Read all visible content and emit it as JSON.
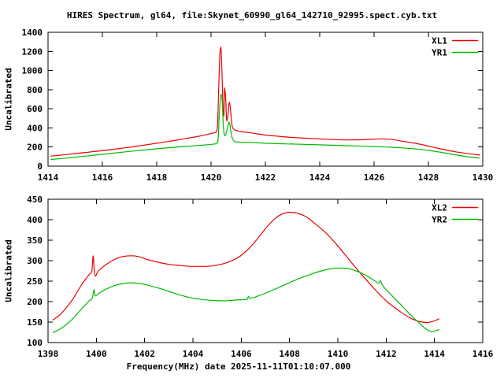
{
  "header": {
    "title": "HIRES Spectrum, gl64, file:Skynet_60990_gl64_142710_92995.spect.cyb.txt"
  },
  "colors": {
    "xl_red": "#ee0000",
    "yr_green": "#00bb00",
    "axis": "#000000",
    "background": "#ffffff"
  },
  "chart_data": [
    {
      "type": "line",
      "panel": "top",
      "ylabel": "Uncalibrated",
      "xlim": [
        1414,
        1430
      ],
      "ylim": [
        0,
        1400
      ],
      "xticks": [
        1414,
        1416,
        1418,
        1420,
        1422,
        1424,
        1426,
        1428,
        1430
      ],
      "yticks": [
        0,
        200,
        400,
        600,
        800,
        1000,
        1200,
        1400
      ],
      "grid": false,
      "legend_position": "top-right",
      "series": [
        {
          "name": "XL1",
          "color": "#ee0000",
          "points": [
            [
              1414.1,
              105
            ],
            [
              1414.5,
              116
            ],
            [
              1415.0,
              132
            ],
            [
              1415.5,
              147
            ],
            [
              1416.0,
              162
            ],
            [
              1416.5,
              180
            ],
            [
              1417.0,
              198
            ],
            [
              1417.5,
              218
            ],
            [
              1418.0,
              240
            ],
            [
              1418.5,
              262
            ],
            [
              1419.0,
              286
            ],
            [
              1419.4,
              305
            ],
            [
              1419.8,
              328
            ],
            [
              1420.05,
              345
            ],
            [
              1420.18,
              356
            ],
            [
              1420.24,
              430
            ],
            [
              1420.28,
              800
            ],
            [
              1420.32,
              1140
            ],
            [
              1420.36,
              1248
            ],
            [
              1420.4,
              1000
            ],
            [
              1420.44,
              620
            ],
            [
              1420.47,
              520
            ],
            [
              1420.5,
              820
            ],
            [
              1420.54,
              700
            ],
            [
              1420.58,
              470
            ],
            [
              1420.62,
              530
            ],
            [
              1420.67,
              668
            ],
            [
              1420.72,
              580
            ],
            [
              1420.77,
              430
            ],
            [
              1420.85,
              385
            ],
            [
              1421.0,
              368
            ],
            [
              1421.4,
              352
            ],
            [
              1422.0,
              325
            ],
            [
              1422.5,
              312
            ],
            [
              1423.0,
              300
            ],
            [
              1423.5,
              292
            ],
            [
              1424.0,
              285
            ],
            [
              1424.5,
              278
            ],
            [
              1425.0,
              274
            ],
            [
              1425.5,
              276
            ],
            [
              1426.0,
              282
            ],
            [
              1426.3,
              286
            ],
            [
              1426.7,
              278
            ],
            [
              1427.0,
              263
            ],
            [
              1427.5,
              240
            ],
            [
              1428.0,
              210
            ],
            [
              1428.5,
              178
            ],
            [
              1429.0,
              150
            ],
            [
              1429.4,
              133
            ],
            [
              1429.9,
              116
            ]
          ]
        },
        {
          "name": "YR1",
          "color": "#00bb00",
          "points": [
            [
              1414.1,
              70
            ],
            [
              1414.5,
              80
            ],
            [
              1415.0,
              94
            ],
            [
              1415.5,
              109
            ],
            [
              1416.0,
              124
            ],
            [
              1416.5,
              139
            ],
            [
              1417.0,
              154
            ],
            [
              1417.5,
              168
            ],
            [
              1418.0,
              182
            ],
            [
              1418.5,
              194
            ],
            [
              1419.0,
              205
            ],
            [
              1419.5,
              216
            ],
            [
              1420.0,
              228
            ],
            [
              1420.2,
              238
            ],
            [
              1420.26,
              280
            ],
            [
              1420.3,
              520
            ],
            [
              1420.34,
              700
            ],
            [
              1420.37,
              752
            ],
            [
              1420.41,
              690
            ],
            [
              1420.45,
              430
            ],
            [
              1420.5,
              318
            ],
            [
              1420.56,
              350
            ],
            [
              1420.62,
              420
            ],
            [
              1420.66,
              462
            ],
            [
              1420.7,
              425
            ],
            [
              1420.76,
              315
            ],
            [
              1420.85,
              262
            ],
            [
              1421.0,
              252
            ],
            [
              1421.5,
              248
            ],
            [
              1422.0,
              240
            ],
            [
              1423.0,
              231
            ],
            [
              1424.0,
              223
            ],
            [
              1425.0,
              214
            ],
            [
              1426.0,
              205
            ],
            [
              1426.5,
              200
            ],
            [
              1427.0,
              192
            ],
            [
              1427.5,
              181
            ],
            [
              1428.0,
              165
            ],
            [
              1428.5,
              143
            ],
            [
              1429.0,
              119
            ],
            [
              1429.4,
              100
            ],
            [
              1429.9,
              84
            ]
          ]
        }
      ]
    },
    {
      "type": "line",
      "panel": "bottom",
      "ylabel": "Uncalibrated",
      "xlabel": "Frequency(MHz) date 2025-11-11T01:10:07.000",
      "xlim": [
        1398,
        1416
      ],
      "ylim": [
        100,
        450
      ],
      "xticks": [
        1398,
        1400,
        1402,
        1404,
        1406,
        1408,
        1410,
        1412,
        1414,
        1416
      ],
      "yticks": [
        100,
        150,
        200,
        250,
        300,
        350,
        400,
        450
      ],
      "grid": false,
      "legend_position": "top-right",
      "series": [
        {
          "name": "XL2",
          "color": "#ee0000",
          "points": [
            [
              1398.2,
              155
            ],
            [
              1398.5,
              168
            ],
            [
              1399.0,
              204
            ],
            [
              1399.4,
              242
            ],
            [
              1399.7,
              266
            ],
            [
              1399.82,
              276
            ],
            [
              1399.87,
              312
            ],
            [
              1399.91,
              278
            ],
            [
              1399.96,
              262
            ],
            [
              1400.05,
              272
            ],
            [
              1400.3,
              286
            ],
            [
              1400.6,
              298
            ],
            [
              1400.9,
              307
            ],
            [
              1401.2,
              311
            ],
            [
              1401.5,
              312
            ],
            [
              1401.8,
              309
            ],
            [
              1402.1,
              303
            ],
            [
              1402.5,
              297
            ],
            [
              1403.0,
              291
            ],
            [
              1403.5,
              288
            ],
            [
              1404.0,
              286
            ],
            [
              1404.5,
              286
            ],
            [
              1405.0,
              289
            ],
            [
              1405.4,
              295
            ],
            [
              1405.8,
              305
            ],
            [
              1406.2,
              323
            ],
            [
              1406.6,
              348
            ],
            [
              1407.0,
              378
            ],
            [
              1407.4,
              403
            ],
            [
              1407.7,
              414
            ],
            [
              1408.0,
              418
            ],
            [
              1408.3,
              416
            ],
            [
              1408.7,
              407
            ],
            [
              1409.0,
              393
            ],
            [
              1409.5,
              368
            ],
            [
              1410.0,
              336
            ],
            [
              1410.5,
              300
            ],
            [
              1411.0,
              265
            ],
            [
              1411.5,
              232
            ],
            [
              1412.0,
              202
            ],
            [
              1412.5,
              179
            ],
            [
              1413.0,
              160
            ],
            [
              1413.4,
              151
            ],
            [
              1413.7,
              149
            ],
            [
              1414.0,
              153
            ],
            [
              1414.2,
              158
            ]
          ]
        },
        {
          "name": "YR2",
          "color": "#00bb00",
          "points": [
            [
              1398.2,
              124
            ],
            [
              1398.6,
              137
            ],
            [
              1399.0,
              157
            ],
            [
              1399.4,
              183
            ],
            [
              1399.7,
              202
            ],
            [
              1399.85,
              212
            ],
            [
              1399.9,
              230
            ],
            [
              1399.95,
              214
            ],
            [
              1400.2,
              224
            ],
            [
              1400.5,
              233
            ],
            [
              1400.8,
              240
            ],
            [
              1401.1,
              244
            ],
            [
              1401.4,
              246
            ],
            [
              1401.7,
              245
            ],
            [
              1402.0,
              242
            ],
            [
              1402.4,
              236
            ],
            [
              1402.8,
              229
            ],
            [
              1403.2,
              221
            ],
            [
              1403.6,
              214
            ],
            [
              1404.0,
              208
            ],
            [
              1404.4,
              205
            ],
            [
              1404.8,
              203
            ],
            [
              1405.3,
              202
            ],
            [
              1405.8,
              204
            ],
            [
              1406.25,
              206
            ],
            [
              1406.3,
              213
            ],
            [
              1406.35,
              208
            ],
            [
              1406.8,
              216
            ],
            [
              1407.3,
              228
            ],
            [
              1407.8,
              241
            ],
            [
              1408.3,
              254
            ],
            [
              1408.8,
              265
            ],
            [
              1409.2,
              273
            ],
            [
              1409.6,
              279
            ],
            [
              1410.0,
              282
            ],
            [
              1410.4,
              281
            ],
            [
              1410.8,
              274
            ],
            [
              1411.2,
              263
            ],
            [
              1411.5,
              252
            ],
            [
              1411.7,
              245
            ],
            [
              1411.75,
              251
            ],
            [
              1411.85,
              240
            ],
            [
              1412.2,
              217
            ],
            [
              1412.6,
              193
            ],
            [
              1413.0,
              168
            ],
            [
              1413.4,
              146
            ],
            [
              1413.7,
              131
            ],
            [
              1413.9,
              127
            ],
            [
              1414.2,
              132
            ]
          ]
        }
      ]
    }
  ]
}
